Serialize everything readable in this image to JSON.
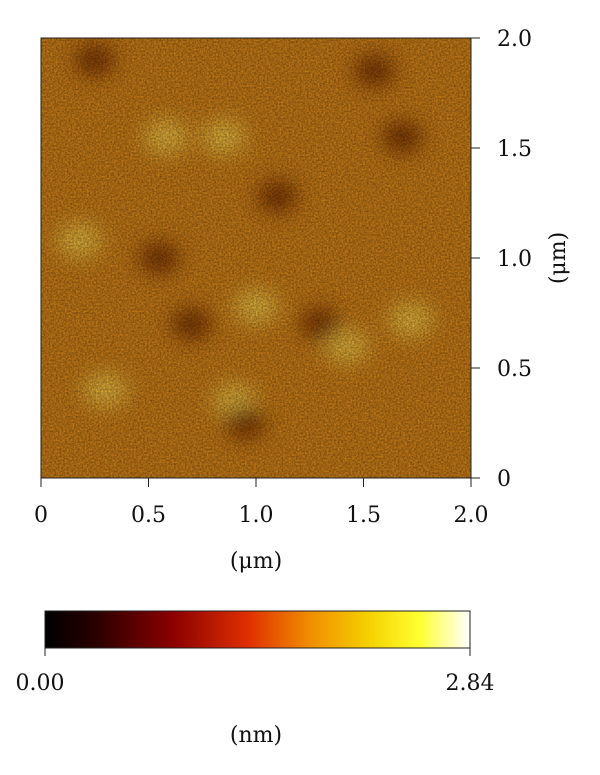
{
  "chart_data": {
    "type": "heatmap",
    "title": "",
    "xlabel": "(μm)",
    "ylabel": "(μm)",
    "xlim": [
      0,
      2.0
    ],
    "ylim": [
      0,
      2.0
    ],
    "x_ticks": [
      "0",
      "0.5",
      "1.0",
      "1.5",
      "2.0"
    ],
    "y_ticks": [
      "0",
      "0.5",
      "1.0",
      "1.5",
      "2.0"
    ],
    "colorbar": {
      "label": "(nm)",
      "min_label": "0.00",
      "max_label": "2.84",
      "range": [
        0.0,
        2.84
      ],
      "colormap": [
        "#000000",
        "#2a0000",
        "#8b0000",
        "#e03000",
        "#f08c00",
        "#f5d000",
        "#ffff30",
        "#ffffff"
      ]
    },
    "features": {
      "bright_spots": [
        [
          0.58,
          1.55
        ],
        [
          0.18,
          1.08
        ],
        [
          1.42,
          0.6
        ],
        [
          1.0,
          0.78
        ],
        [
          0.85,
          1.55
        ],
        [
          1.72,
          0.72
        ],
        [
          0.3,
          0.4
        ],
        [
          0.9,
          0.35
        ]
      ],
      "dark_spots": [
        [
          1.68,
          1.55
        ],
        [
          0.55,
          1.0
        ],
        [
          0.7,
          0.7
        ],
        [
          1.1,
          1.28
        ],
        [
          0.25,
          1.9
        ],
        [
          1.55,
          1.85
        ],
        [
          1.3,
          0.7
        ],
        [
          0.95,
          0.25
        ]
      ]
    }
  }
}
